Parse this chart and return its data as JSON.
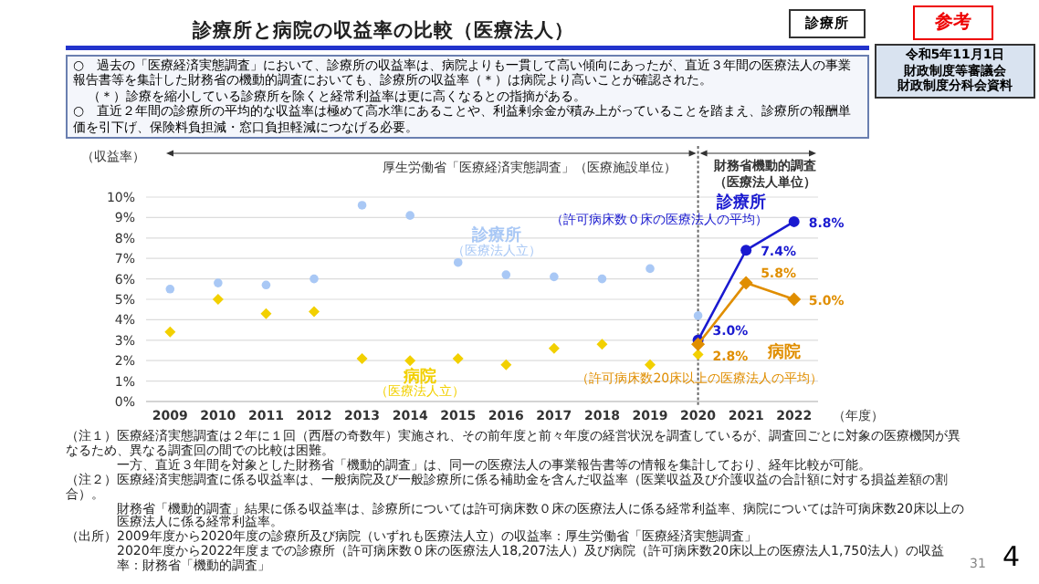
{
  "chart_data": {
    "type": "scatter",
    "title": "診療所と病院の収益率の比較（医療法人）",
    "ylabel": "（収益率）",
    "xlabel": "（年度）",
    "x": [
      2009,
      2010,
      2011,
      2012,
      2013,
      2014,
      2015,
      2016,
      2017,
      2018,
      2019,
      2020
    ],
    "xlim": [
      2008.5,
      2022.5
    ],
    "xticks": [
      2009,
      2010,
      2011,
      2012,
      2013,
      2014,
      2015,
      2016,
      2017,
      2018,
      2019,
      2020,
      2021,
      2022
    ],
    "ylim": [
      0,
      10
    ],
    "yticks": [
      {
        "value": 0,
        "label": "0%"
      },
      {
        "value": 1,
        "label": "1%"
      },
      {
        "value": 2,
        "label": "2%"
      },
      {
        "value": 3,
        "label": "3%"
      },
      {
        "value": 4,
        "label": "4%"
      },
      {
        "value": 5,
        "label": "5%"
      },
      {
        "value": 6,
        "label": "6%"
      },
      {
        "value": 7,
        "label": "7%"
      },
      {
        "value": 8,
        "label": "8%"
      },
      {
        "value": 9,
        "label": "9%"
      },
      {
        "value": 10,
        "label": "10%"
      }
    ],
    "grid": "y",
    "legend": false,
    "series": [
      {
        "name": "診療所",
        "marker": "circle",
        "color": "#a9c8f5",
        "values": [
          5.5,
          5.8,
          5.7,
          6.0,
          9.6,
          9.1,
          6.8,
          6.2,
          6.1,
          6.0,
          6.5,
          4.2
        ]
      },
      {
        "name": "病院",
        "marker": "diamond",
        "color": "#f2d000",
        "values": [
          3.4,
          5.0,
          4.3,
          4.4,
          2.1,
          2.0,
          2.1,
          1.8,
          2.6,
          2.8,
          1.8,
          2.3
        ]
      },
      {
        "name": "診療所",
        "type": "line",
        "marker": "circle",
        "color": "#1a1ad0",
        "x": [
          2020,
          2021,
          2022
        ],
        "values": [
          3.0,
          7.4,
          8.8
        ],
        "value_labels": [
          "3.0%",
          "7.4%",
          "8.8%"
        ]
      },
      {
        "name": "病院",
        "type": "line",
        "marker": "diamond",
        "color": "#e08e00",
        "x": [
          2020,
          2021,
          2022
        ],
        "values": [
          2.8,
          5.8,
          5.0
        ],
        "value_labels": [
          "2.8%",
          "5.8%",
          "5.0%"
        ]
      }
    ],
    "ref_lines": [
      {
        "axis": "x",
        "value": 2020,
        "line_style": "dotted",
        "color": "#666666"
      }
    ],
    "annotations": [
      "参考",
      "診療所",
      "令和5年11月1日",
      "財政制度等審議会",
      "財政制度分科会資料",
      "○　過去の「医療経済実態調査」において、診療所の収益率は、病院よりも一貫して高い傾向にあったが、直近３年間の医療法人の事業報告書等を集計した財務省の機動的調査においても、診療所の収益率（＊）は病院より高いことが確認された。",
      "（＊）診療を縮小している診療所を除くと経常利益率は更に高くなるとの指摘がある。",
      "○　直近２年間の診療所の平均的な収益率は極めて高水準にあることや、利益剰余金が積み上がっていることを踏まえ、診療所の報酬単価を引下げ、保険料負担減・窓口負担軽減につなげる必要。",
      "厚生労働省「医療経済実態調査」（医療施設単位）",
      "財務省機動的調査",
      "（医療法人単位）",
      "（医療法人立）",
      "（医療法人立）",
      "（許可病床数０床の医療法人の平均）",
      "（許可病床数20床以上の医療法人の平均）",
      "（注１）医療経済実態調査は２年に１回（西暦の奇数年）実施され、その前年度と前々年度の経営状況を調査しているが、調査回ごとに対象の医療機関が異なるため、異なる調査回の間での比較は困難。",
      "一方、直近３年間を対象とした財務省「機動的調査」は、同一の医療法人の事業報告書等の情報を集計しており、経年比較が可能。",
      "（注２）医療経済実態調査に係る収益率は、一般病院及び一般診療所に係る補助金を含んだ収益率（医業収益及び介護収益の合計額に対する損益差額の割合）。",
      "財務省「機動的調査」結果に係る収益率は、診療所については許可病床数０床の医療法人に係る経常利益率、病院については許可病床数20床以上の医療法人に係る経常利益率。",
      "（出所）2009年度から2020年度の診療所及び病院（いずれも医療法人立）の収益率：厚生労働省「医療経済実態調査」",
      "2020年度から2022年度までの診療所（許可病床数０床の医療法人18,207法人）及び病院（許可病床数20床以上の医療法人1,750法人）の収益率：財務省「機動的調査」",
      "31",
      "4"
    ]
  }
}
